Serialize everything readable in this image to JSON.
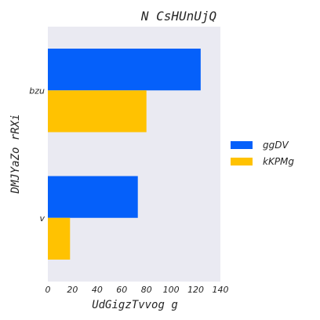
{
  "chart_data": {
    "type": "bar",
    "orientation": "horizontal",
    "title": "N CsHUnUjQ",
    "xlabel": "UdGigzTvvog g",
    "ylabel": "DMJYaZo rRXi",
    "categories": [
      "bzu",
      "v"
    ],
    "series": [
      {
        "name": "ggDV",
        "values": [
          124,
          73
        ],
        "color": "#0560fa"
      },
      {
        "name": "kKPMg",
        "values": [
          80,
          18
        ],
        "color": "#ffc201"
      }
    ],
    "xlim": [
      0,
      140
    ],
    "xticks": [
      "0",
      "20",
      "40",
      "60",
      "80",
      "100",
      "120",
      "140"
    ],
    "grid": false,
    "legend": "right",
    "background": "#eaeaf2"
  }
}
